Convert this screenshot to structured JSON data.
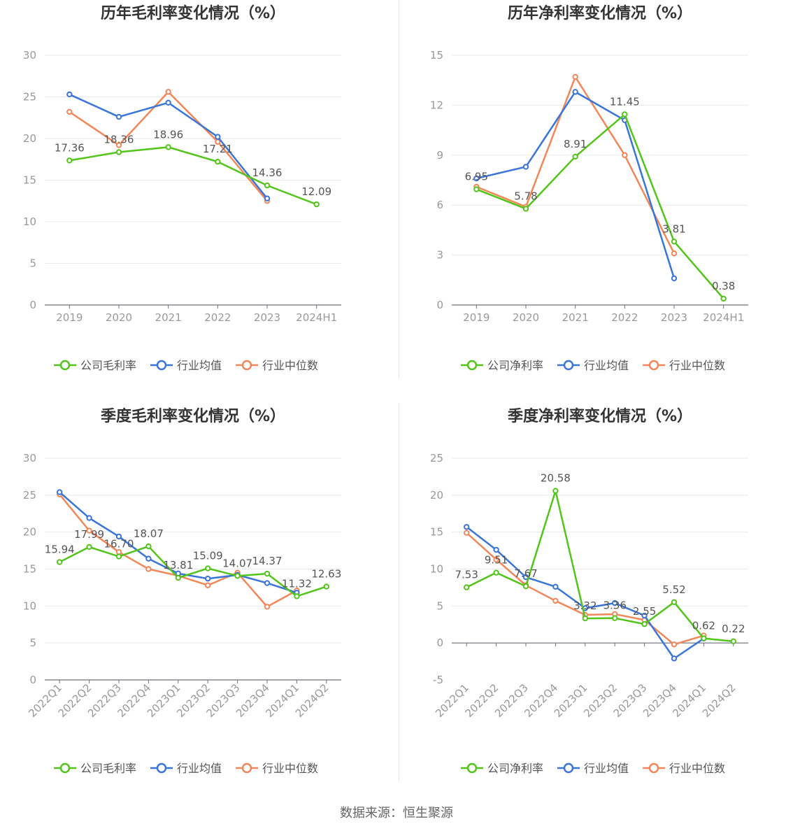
{
  "legend_labels": {
    "company_gross": "公司毛利率",
    "company_net": "公司净利率",
    "industry_mean": "行业均值",
    "industry_median": "行业中位数"
  },
  "colors": {
    "company": "#52c41a",
    "industry_mean": "#3a75d9",
    "industry_median": "#f2875a",
    "axis": "#999999",
    "grid": "#e6e9f0",
    "title": "#333333",
    "label": "#555555"
  },
  "source": "数据来源：恒生聚源",
  "chart_data": [
    {
      "id": "annual-gross",
      "type": "line",
      "title": "历年毛利率变化情况（%）",
      "categories": [
        "2019",
        "2020",
        "2021",
        "2022",
        "2023",
        "2024H1"
      ],
      "ylim": [
        0,
        30
      ],
      "yticks": [
        0,
        5,
        10,
        15,
        20,
        25,
        30
      ],
      "rotate_x_labels": false,
      "series": [
        {
          "name": "公司毛利率",
          "role": "company",
          "values": [
            17.36,
            18.36,
            18.96,
            17.21,
            14.36,
            12.09
          ],
          "data_labels": [
            "17.36",
            "18.36",
            "18.96",
            "17.21",
            "14.36",
            "12.09"
          ]
        },
        {
          "name": "行业均值",
          "role": "industry_mean",
          "values": [
            25.3,
            22.6,
            24.3,
            20.2,
            12.8,
            null
          ]
        },
        {
          "name": "行业中位数",
          "role": "industry_median",
          "values": [
            23.2,
            19.2,
            25.6,
            19.6,
            12.5,
            null
          ]
        }
      ]
    },
    {
      "id": "annual-net",
      "type": "line",
      "title": "历年净利率变化情况（%）",
      "categories": [
        "2019",
        "2020",
        "2021",
        "2022",
        "2023",
        "2024H1"
      ],
      "ylim": [
        0,
        15
      ],
      "yticks": [
        0,
        3,
        6,
        9,
        12,
        15
      ],
      "rotate_x_labels": false,
      "series": [
        {
          "name": "公司净利率",
          "role": "company",
          "values": [
            6.95,
            5.78,
            8.91,
            11.45,
            3.81,
            0.38
          ],
          "data_labels": [
            "6.95",
            "5.78",
            "8.91",
            "11.45",
            "3.81",
            "0.38"
          ]
        },
        {
          "name": "行业均值",
          "role": "industry_mean",
          "values": [
            7.6,
            8.3,
            12.8,
            11.1,
            1.6,
            null
          ]
        },
        {
          "name": "行业中位数",
          "role": "industry_median",
          "values": [
            7.1,
            5.9,
            13.7,
            9.0,
            3.1,
            null
          ]
        }
      ]
    },
    {
      "id": "quarterly-gross",
      "type": "line",
      "title": "季度毛利率变化情况（%）",
      "categories": [
        "2022Q1",
        "2022Q2",
        "2022Q3",
        "2022Q4",
        "2023Q1",
        "2023Q2",
        "2023Q3",
        "2023Q4",
        "2024Q1",
        "2024Q2"
      ],
      "ylim": [
        0,
        30
      ],
      "yticks": [
        0,
        5,
        10,
        15,
        20,
        25,
        30
      ],
      "rotate_x_labels": true,
      "series": [
        {
          "name": "公司毛利率",
          "role": "company",
          "values": [
            15.94,
            17.99,
            16.7,
            18.07,
            13.81,
            15.09,
            14.07,
            14.37,
            11.32,
            12.63
          ],
          "data_labels": [
            "15.94",
            "17.99",
            "16.70",
            "18.07",
            "13.81",
            "15.09",
            "14.07",
            "14.37",
            "11.32",
            "12.63"
          ]
        },
        {
          "name": "行业均值",
          "role": "industry_mean",
          "values": [
            25.4,
            21.9,
            19.4,
            16.4,
            14.4,
            13.7,
            14.2,
            13.1,
            11.8,
            null
          ]
        },
        {
          "name": "行业中位数",
          "role": "industry_median",
          "values": [
            25.1,
            20.2,
            17.3,
            15.0,
            14.1,
            12.8,
            14.5,
            9.9,
            12.1,
            null
          ]
        }
      ]
    },
    {
      "id": "quarterly-net",
      "type": "line",
      "title": "季度净利率变化情况（%）",
      "categories": [
        "2022Q1",
        "2022Q2",
        "2022Q3",
        "2022Q4",
        "2023Q1",
        "2023Q2",
        "2023Q3",
        "2023Q4",
        "2024Q1",
        "2024Q2"
      ],
      "ylim": [
        -5,
        25
      ],
      "yticks": [
        -5,
        0,
        5,
        10,
        15,
        20,
        25
      ],
      "rotate_x_labels": true,
      "series": [
        {
          "name": "公司净利率",
          "role": "company",
          "values": [
            7.53,
            9.51,
            7.67,
            20.58,
            3.32,
            3.36,
            2.55,
            5.52,
            0.62,
            0.22
          ],
          "data_labels": [
            "7.53",
            "9.51",
            "7.67",
            "20.58",
            "3.32",
            "3.36",
            "2.55",
            "5.52",
            "0.62",
            "0.22"
          ]
        },
        {
          "name": "行业均值",
          "role": "industry_mean",
          "values": [
            15.7,
            12.6,
            8.9,
            7.6,
            4.7,
            5.4,
            3.7,
            -2.1,
            0.6,
            null
          ]
        },
        {
          "name": "行业中位数",
          "role": "industry_median",
          "values": [
            14.9,
            11.3,
            7.8,
            5.7,
            3.8,
            3.9,
            3.1,
            -0.2,
            1.0,
            null
          ]
        }
      ]
    }
  ]
}
